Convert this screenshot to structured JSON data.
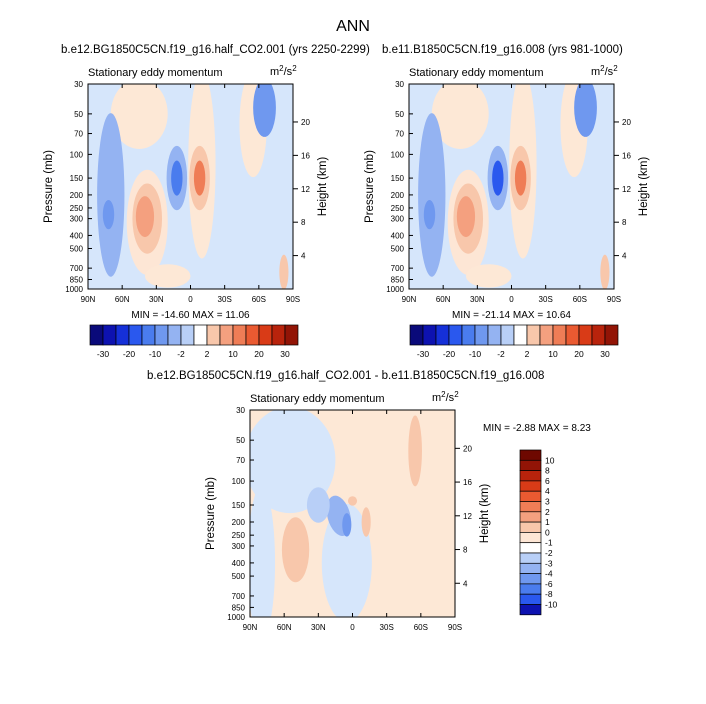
{
  "figure": {
    "title": "ANN",
    "unit": "m²/s²",
    "variable": "Stationary eddy momentum",
    "y_left_label": "Pressure (mb)",
    "y_right_label": "Height (km)"
  },
  "axes": {
    "lat_ticks": [
      "90N",
      "60N",
      "30N",
      "0",
      "30S",
      "60S",
      "90S"
    ],
    "lat_values": [
      90,
      60,
      30,
      0,
      -30,
      -60,
      -90
    ],
    "pressure_ticks": [
      "30",
      "50",
      "70",
      "100",
      "150",
      "200",
      "250",
      "300",
      "400",
      "500",
      "700",
      "850",
      "1000"
    ],
    "pressure_values": [
      30,
      50,
      70,
      100,
      150,
      200,
      250,
      300,
      400,
      500,
      700,
      850,
      1000
    ],
    "height_ticks_top": [
      "20",
      "16",
      "12",
      "8",
      "4"
    ],
    "height_values_top": [
      20,
      16,
      12,
      8,
      4
    ],
    "height_ticks_bottom": [
      "20",
      "16",
      "12",
      "8",
      "4"
    ],
    "height_values_bottom": [
      20,
      16,
      12,
      8,
      4
    ]
  },
  "colors": {
    "blues": [
      "#0a0a7a",
      "#0d12b0",
      "#1530d8",
      "#2a58ee",
      "#4a7cee",
      "#6f98ef",
      "#94b3f2",
      "#b8cff7",
      "#d9e6fb"
    ],
    "reds": [
      "#fde6d5",
      "#f8c7ab",
      "#f4a07f",
      "#ef7d56",
      "#ea5a31",
      "#d93b17",
      "#b8230c",
      "#921406",
      "#6e0800"
    ]
  },
  "colorbar_top": {
    "labels": [
      "-30",
      "-20",
      "-10",
      "-2",
      "2",
      "10",
      "20",
      "30"
    ],
    "levels": [
      -30,
      -20,
      -10,
      -2,
      2,
      10,
      20,
      30
    ]
  },
  "colorbar_bottom": {
    "labels": [
      "10",
      "8",
      "6",
      "4",
      "3",
      "2",
      "1",
      "0",
      "-1",
      "-2",
      "-3",
      "-4",
      "-6",
      "-8",
      "-10"
    ],
    "levels": [
      10,
      8,
      6,
      4,
      3,
      2,
      1,
      0,
      -1,
      -2,
      -3,
      -4,
      -6,
      -8,
      -10
    ]
  },
  "chart_data": [
    {
      "type": "heatmap",
      "title": "b.e12.BG1850C5CN.f19_g16.half_CO2.001 (yrs 2250-2299)",
      "subtitle": "Stationary eddy momentum",
      "units": "m²/s²",
      "xlabel": "",
      "ylabel": "Pressure (mb)",
      "y2label": "Height (km)",
      "xlim": [
        90,
        -90
      ],
      "ylim": [
        1000,
        30
      ],
      "y_scale": "log",
      "stats": {
        "min": -14.6,
        "max": 11.06
      },
      "min_text": "MIN = -14.60  MAX =  11.06",
      "levels": [
        -30,
        -20,
        -10,
        -2,
        2,
        10,
        20,
        30
      ]
    },
    {
      "type": "heatmap",
      "title": "b.e11.B1850C5CN.f19_g16.008 (yrs 981-1000)",
      "subtitle": "Stationary eddy momentum",
      "units": "m²/s²",
      "xlabel": "",
      "ylabel": "Pressure (mb)",
      "y2label": "Height (km)",
      "xlim": [
        90,
        -90
      ],
      "ylim": [
        1000,
        30
      ],
      "y_scale": "log",
      "stats": {
        "min": -21.14,
        "max": 10.64
      },
      "min_text": "MIN = -21.14  MAX =  10.64",
      "levels": [
        -30,
        -20,
        -10,
        -2,
        2,
        10,
        20,
        30
      ]
    },
    {
      "type": "heatmap",
      "title": "b.e12.BG1850C5CN.f19_g16.half_CO2.001 - b.e11.B1850C5CN.f19_g16.008",
      "subtitle": "Stationary eddy momentum",
      "units": "m²/s²",
      "xlabel": "",
      "ylabel": "Pressure (mb)",
      "y2label": "Height (km)",
      "xlim": [
        90,
        -90
      ],
      "ylim": [
        1000,
        30
      ],
      "y_scale": "log",
      "stats": {
        "min": -2.88,
        "max": 8.23
      },
      "min_text": "MIN =  -2.88  MAX =   8.23",
      "levels": [
        -10,
        -8,
        -6,
        -4,
        -3,
        -2,
        -1,
        0,
        1,
        2,
        3,
        4,
        6,
        8,
        10
      ]
    }
  ]
}
